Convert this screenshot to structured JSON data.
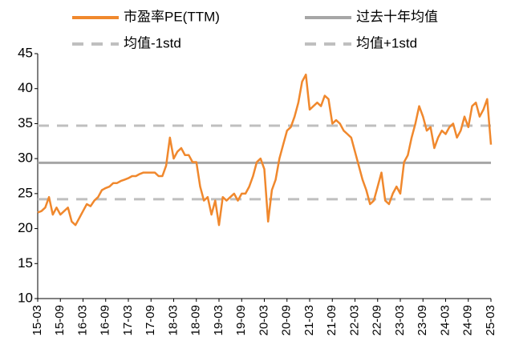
{
  "chart_data": {
    "type": "line",
    "categories": [
      "15-03",
      null,
      null,
      null,
      null,
      null,
      "15-09",
      null,
      null,
      null,
      null,
      null,
      "16-03",
      null,
      null,
      null,
      null,
      null,
      "16-09",
      null,
      null,
      null,
      null,
      null,
      "17-03",
      null,
      null,
      null,
      null,
      null,
      "17-09",
      null,
      null,
      null,
      null,
      null,
      "18-03",
      null,
      null,
      null,
      null,
      null,
      "18-09",
      null,
      null,
      null,
      null,
      null,
      "19-03",
      null,
      null,
      null,
      null,
      null,
      "19-09",
      null,
      null,
      null,
      null,
      null,
      "20-03",
      null,
      null,
      null,
      null,
      null,
      "20-09",
      null,
      null,
      null,
      null,
      null,
      "21-03",
      null,
      null,
      null,
      null,
      null,
      "21-09",
      null,
      null,
      null,
      null,
      null,
      "22-03",
      null,
      null,
      null,
      null,
      null,
      "22-09",
      null,
      null,
      null,
      null,
      null,
      "23-03",
      null,
      null,
      null,
      null,
      null,
      "23-09",
      null,
      null,
      null,
      null,
      null,
      "24-03",
      null,
      null,
      null,
      null,
      null,
      "24-09",
      null,
      null,
      null,
      null,
      null,
      "25-03"
    ],
    "series": [
      {
        "name": "市盈率PE(TTM)",
        "color": "#f0882d",
        "values": [
          22.3,
          22.5,
          23,
          24.5,
          22,
          23,
          22,
          22.5,
          23,
          21,
          20.5,
          21.5,
          22.5,
          23.5,
          23.2,
          24,
          24.5,
          25.5,
          25.8,
          26,
          26.5,
          26.5,
          26.8,
          27,
          27.2,
          27.5,
          27.5,
          27.8,
          28,
          28,
          28,
          28,
          27.5,
          27.5,
          29,
          33,
          30,
          31,
          31.5,
          30.5,
          30.5,
          29.5,
          29.5,
          26,
          24,
          24.5,
          22,
          24,
          20.5,
          24.5,
          24,
          24.5,
          25,
          24,
          25,
          25,
          26,
          27.5,
          29.5,
          30,
          28.5,
          21,
          25.5,
          27,
          30,
          32,
          34,
          34.5,
          36,
          38,
          41,
          42,
          37,
          37.5,
          38,
          37.5,
          39,
          38.5,
          35,
          35.5,
          35,
          34,
          33.5,
          33,
          31,
          29,
          27,
          25.5,
          23.5,
          24,
          26,
          28,
          24,
          23.5,
          25,
          26,
          25,
          29.5,
          30.5,
          33,
          35,
          37.5,
          36,
          34,
          34.5,
          31.5,
          33,
          34,
          33.5,
          34.5,
          35,
          33,
          34,
          36,
          34.5,
          37.5,
          38,
          36,
          37,
          38.5,
          32
        ]
      }
    ],
    "hlines": [
      {
        "name": "过去十年均值",
        "value": 29.4,
        "color": "#a6a6a6",
        "dashed": false
      },
      {
        "name": "均值-1std",
        "value": 24.2,
        "color": "#bfbfbf",
        "dashed": true
      },
      {
        "name": "均值+1std",
        "value": 34.7,
        "color": "#bfbfbf",
        "dashed": true
      }
    ],
    "ylim": [
      10,
      45
    ],
    "yticks": [
      10,
      15,
      20,
      25,
      30,
      35,
      40,
      45
    ],
    "grid": false
  }
}
